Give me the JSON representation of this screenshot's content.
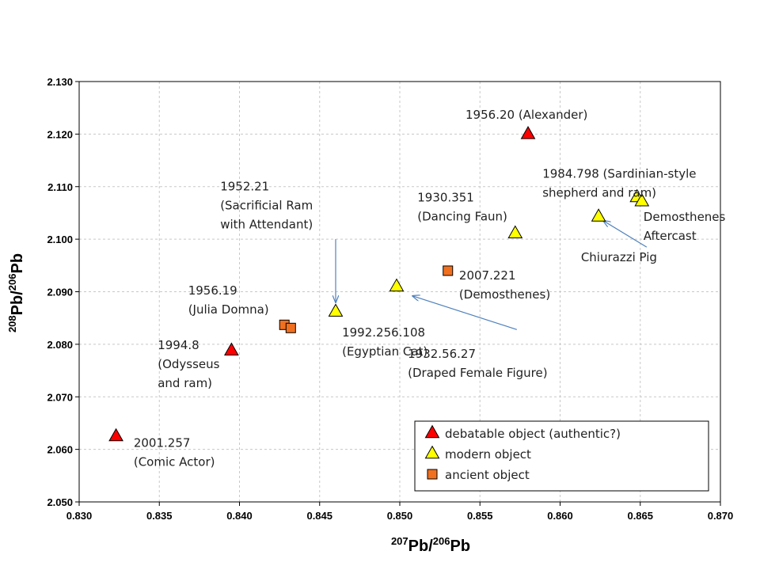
{
  "chart_data": {
    "type": "scatter",
    "xlabel": {
      "sup1": "207",
      "el1": "Pb/",
      "sup2": "206",
      "el2": "Pb"
    },
    "ylabel": {
      "sup1": "208",
      "el1": "Pb/",
      "sup2": "206",
      "el2": "Pb"
    },
    "xlim": [
      0.83,
      0.87
    ],
    "ylim": [
      2.05,
      2.13
    ],
    "xticks": [
      "0.830",
      "0.835",
      "0.840",
      "0.845",
      "0.850",
      "0.855",
      "0.860",
      "0.865",
      "0.870"
    ],
    "yticks": [
      "2.050",
      "2.060",
      "2.070",
      "2.080",
      "2.090",
      "2.100",
      "2.110",
      "2.120",
      "2.130"
    ],
    "grid": true,
    "legend_position": "bottom-right",
    "series": [
      {
        "name": "debatable object (authentic?)",
        "marker": "triangle",
        "color": "#ff0000",
        "points": [
          {
            "x": 0.858,
            "y": 2.12
          },
          {
            "x": 0.8395,
            "y": 2.0788
          },
          {
            "x": 0.8323,
            "y": 2.0625
          }
        ]
      },
      {
        "name": "modern object",
        "marker": "triangle",
        "color": "#ffff00",
        "points": [
          {
            "x": 0.8648,
            "y": 2.108
          },
          {
            "x": 0.8651,
            "y": 2.1072
          },
          {
            "x": 0.8624,
            "y": 2.1043
          },
          {
            "x": 0.8572,
            "y": 2.1011
          },
          {
            "x": 0.8498,
            "y": 2.091
          },
          {
            "x": 0.846,
            "y": 2.0862
          }
        ]
      },
      {
        "name": "ancient object",
        "marker": "square",
        "color": "#f07020",
        "points": [
          {
            "x": 0.853,
            "y": 2.094
          },
          {
            "x": 0.8428,
            "y": 2.0837
          },
          {
            "x": 0.8432,
            "y": 2.0831
          }
        ]
      }
    ],
    "annotations": [
      {
        "lines": [
          "1956.20 (Alexander)"
        ],
        "x": 0.8541,
        "y": 2.1229
      },
      {
        "lines": [
          "1984.798 (Sardinian-style",
          "shepherd and ram)"
        ],
        "x": 0.8589,
        "y": 2.1117
      },
      {
        "lines": [
          "1930.351",
          "(Dancing Faun)"
        ],
        "x": 0.8511,
        "y": 2.1072
      },
      {
        "lines": [
          "Demosthenes",
          "Aftercast"
        ],
        "x": 0.8652,
        "y": 2.1035
      },
      {
        "lines": [
          "1952.21",
          "(Sacrificial Ram",
          "with Attendant)"
        ],
        "x": 0.8388,
        "y": 2.1093
      },
      {
        "lines": [
          "Chiurazzi Pig"
        ],
        "x": 0.8613,
        "y": 2.0958
      },
      {
        "lines": [
          "2007.221",
          "(Demosthenes)"
        ],
        "x": 0.8537,
        "y": 2.0923
      },
      {
        "lines": [
          "1956.19",
          "(Julia Domna)"
        ],
        "x": 0.8368,
        "y": 2.0895
      },
      {
        "lines": [
          "1992.256.108",
          "(Egyptian Cat)"
        ],
        "x": 0.8464,
        "y": 2.0815
      },
      {
        "lines": [
          "1932.56.27",
          "(Draped Female Figure)"
        ],
        "x": 0.8505,
        "y": 2.0774
      },
      {
        "lines": [
          "1994.8",
          "(Odysseus",
          "and ram)"
        ],
        "x": 0.8349,
        "y": 2.0791
      },
      {
        "lines": [
          "2001.257",
          "(Comic Actor)"
        ],
        "x": 0.8334,
        "y": 2.0605
      }
    ],
    "arrows": [
      {
        "from": [
          0.846,
          2.1
        ],
        "to": [
          0.846,
          2.088
        ]
      },
      {
        "from": [
          0.8573,
          2.0828
        ],
        "to": [
          0.8508,
          2.0892
        ]
      },
      {
        "from": [
          0.8654,
          2.0985
        ],
        "to": [
          0.8627,
          2.1035
        ]
      }
    ]
  }
}
